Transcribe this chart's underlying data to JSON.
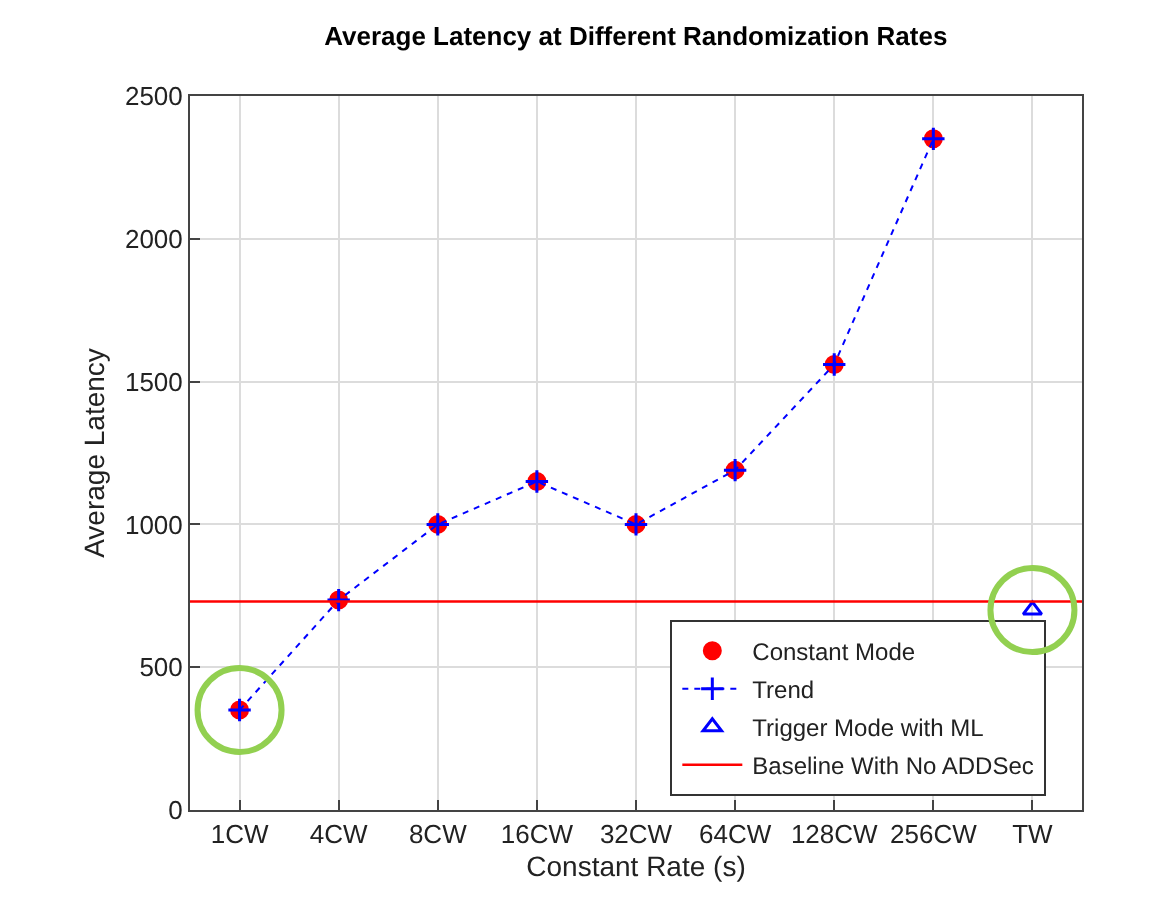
{
  "chart_data": {
    "type": "scatter",
    "title": "Average Latency at Different Randomization Rates",
    "xlabel": "Constant Rate (s)",
    "ylabel": "Average Latency",
    "categories": [
      "1CW",
      "4CW",
      "8CW",
      "16CW",
      "32CW",
      "64CW",
      "128CW",
      "256CW",
      "TW"
    ],
    "series": [
      {
        "name": "Constant Mode",
        "type": "scatter",
        "marker": "circle",
        "color": "#ff0000",
        "values": [
          350,
          735,
          1000,
          1150,
          1000,
          1190,
          1560,
          2350,
          null
        ]
      },
      {
        "name": "Trend",
        "type": "line",
        "marker": "cross",
        "line_style": "dotted",
        "color": "#0000ff",
        "values": [
          350,
          735,
          1000,
          1150,
          1000,
          1190,
          1560,
          2350,
          null
        ]
      },
      {
        "name": "Trigger Mode with ML",
        "type": "scatter",
        "marker": "triangle",
        "color": "#0000ff",
        "x": [
          "TW"
        ],
        "values": [
          700
        ]
      }
    ],
    "ref_lines": [
      {
        "axis": "y",
        "value": 730,
        "label": "Baseline With No ADDSec",
        "color": "#ff0000",
        "line_style": "solid"
      }
    ],
    "ylim": [
      0,
      2500
    ],
    "yticks": [
      0,
      500,
      1000,
      1500,
      2000,
      2500
    ],
    "grid": true,
    "legend": "bottom right"
  }
}
